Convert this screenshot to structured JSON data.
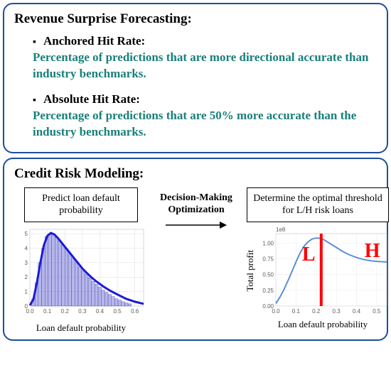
{
  "revenue_panel": {
    "title": "Revenue Surprise Forecasting:",
    "items": [
      {
        "label": "Anchored Hit Rate:",
        "desc": "Percentage of predictions that are more directional accurate than industry benchmarks."
      },
      {
        "label": "Absolute Hit Rate:",
        "desc": "Percentage of predictions that are 50% more accurate than the industry benchmarks."
      }
    ],
    "bullet_symbol": "▪",
    "desc_color": "#188079",
    "title_color": "#000000",
    "border_color": "#1f4e9c"
  },
  "credit_panel": {
    "title": "Credit Risk Modeling:",
    "left_box": "Predict loan default probability",
    "mid_label": "Decision-Making Optimization",
    "right_box": "Determine the optimal threshold for L/H risk loans",
    "border_color": "#1f4e9c",
    "arrow_color": "#000000",
    "left_chart": {
      "type": "histogram_kde",
      "xlabel": "Loan default probability",
      "xlim": [
        0.0,
        0.65
      ],
      "ylim": [
        0,
        5.3
      ],
      "xticks": [
        0.0,
        0.1,
        0.2,
        0.3,
        0.4,
        0.5,
        0.6
      ],
      "yticks": [
        0,
        1,
        2,
        3,
        4,
        5
      ],
      "bar_color": "#7a7ad8",
      "bar_alpha": 0.55,
      "bar_edge": "#4a4ab0",
      "line_color": "#1b1bd6",
      "line_width": 3,
      "grid_color": "#dddddd",
      "bg_color": "#ffffff",
      "bins_start": 0.01,
      "bin_width": 0.019,
      "n_bins": 30,
      "bin_heights": [
        0.5,
        1.6,
        3.0,
        4.0,
        4.8,
        5.0,
        4.95,
        4.75,
        4.5,
        4.2,
        3.95,
        3.6,
        3.3,
        3.0,
        2.7,
        2.45,
        2.2,
        1.95,
        1.7,
        1.5,
        1.3,
        1.1,
        0.95,
        0.8,
        0.65,
        0.5,
        0.4,
        0.3,
        0.22,
        0.15
      ],
      "kde_x": [
        0.0,
        0.02,
        0.04,
        0.06,
        0.08,
        0.1,
        0.12,
        0.14,
        0.16,
        0.18,
        0.2,
        0.22,
        0.24,
        0.26,
        0.28,
        0.3,
        0.32,
        0.35,
        0.38,
        0.42,
        0.46,
        0.5,
        0.55,
        0.6,
        0.65
      ],
      "kde_y": [
        0.05,
        0.45,
        1.6,
        3.0,
        4.2,
        4.85,
        5.05,
        4.95,
        4.7,
        4.4,
        4.1,
        3.8,
        3.5,
        3.2,
        2.9,
        2.6,
        2.35,
        2.0,
        1.7,
        1.35,
        1.05,
        0.8,
        0.5,
        0.3,
        0.15
      ]
    },
    "right_chart": {
      "type": "line",
      "xlabel": "Loan default probability",
      "ylabel": "Total profit",
      "xlim": [
        0.0,
        0.55
      ],
      "ylim": [
        0.0,
        1.15
      ],
      "xticks": [
        0.0,
        0.1,
        0.2,
        0.3,
        0.4,
        0.5
      ],
      "yticks": [
        0.0,
        0.2,
        0.4,
        0.6,
        0.8,
        1.0
      ],
      "ytick_labels": [
        "0.00",
        "0.25",
        "0.50",
        "0.75",
        "1.00"
      ],
      "ytick_label_positions": [
        0.0,
        0.25,
        0.5,
        0.75,
        1.0
      ],
      "exponent_label": "1e8",
      "line_color": "#5b8fd6",
      "line_width": 2,
      "threshold_x": 0.225,
      "threshold_color": "#ff0000",
      "threshold_width": 4,
      "grid_color": "#e8e8e8",
      "bg_color": "#ffffff",
      "letter_L": "L",
      "letter_H": "H",
      "L_pos": [
        0.13,
        0.72
      ],
      "H_pos": [
        0.44,
        0.78
      ],
      "curve_x": [
        0.0,
        0.02,
        0.04,
        0.06,
        0.08,
        0.1,
        0.12,
        0.14,
        0.16,
        0.18,
        0.2,
        0.22,
        0.24,
        0.26,
        0.28,
        0.3,
        0.33,
        0.36,
        0.4,
        0.44,
        0.48,
        0.52,
        0.55
      ],
      "curve_y": [
        0.04,
        0.14,
        0.26,
        0.4,
        0.55,
        0.7,
        0.84,
        0.95,
        1.02,
        1.065,
        1.08,
        1.075,
        1.05,
        1.01,
        0.97,
        0.93,
        0.87,
        0.82,
        0.77,
        0.735,
        0.715,
        0.705,
        0.7
      ]
    }
  }
}
